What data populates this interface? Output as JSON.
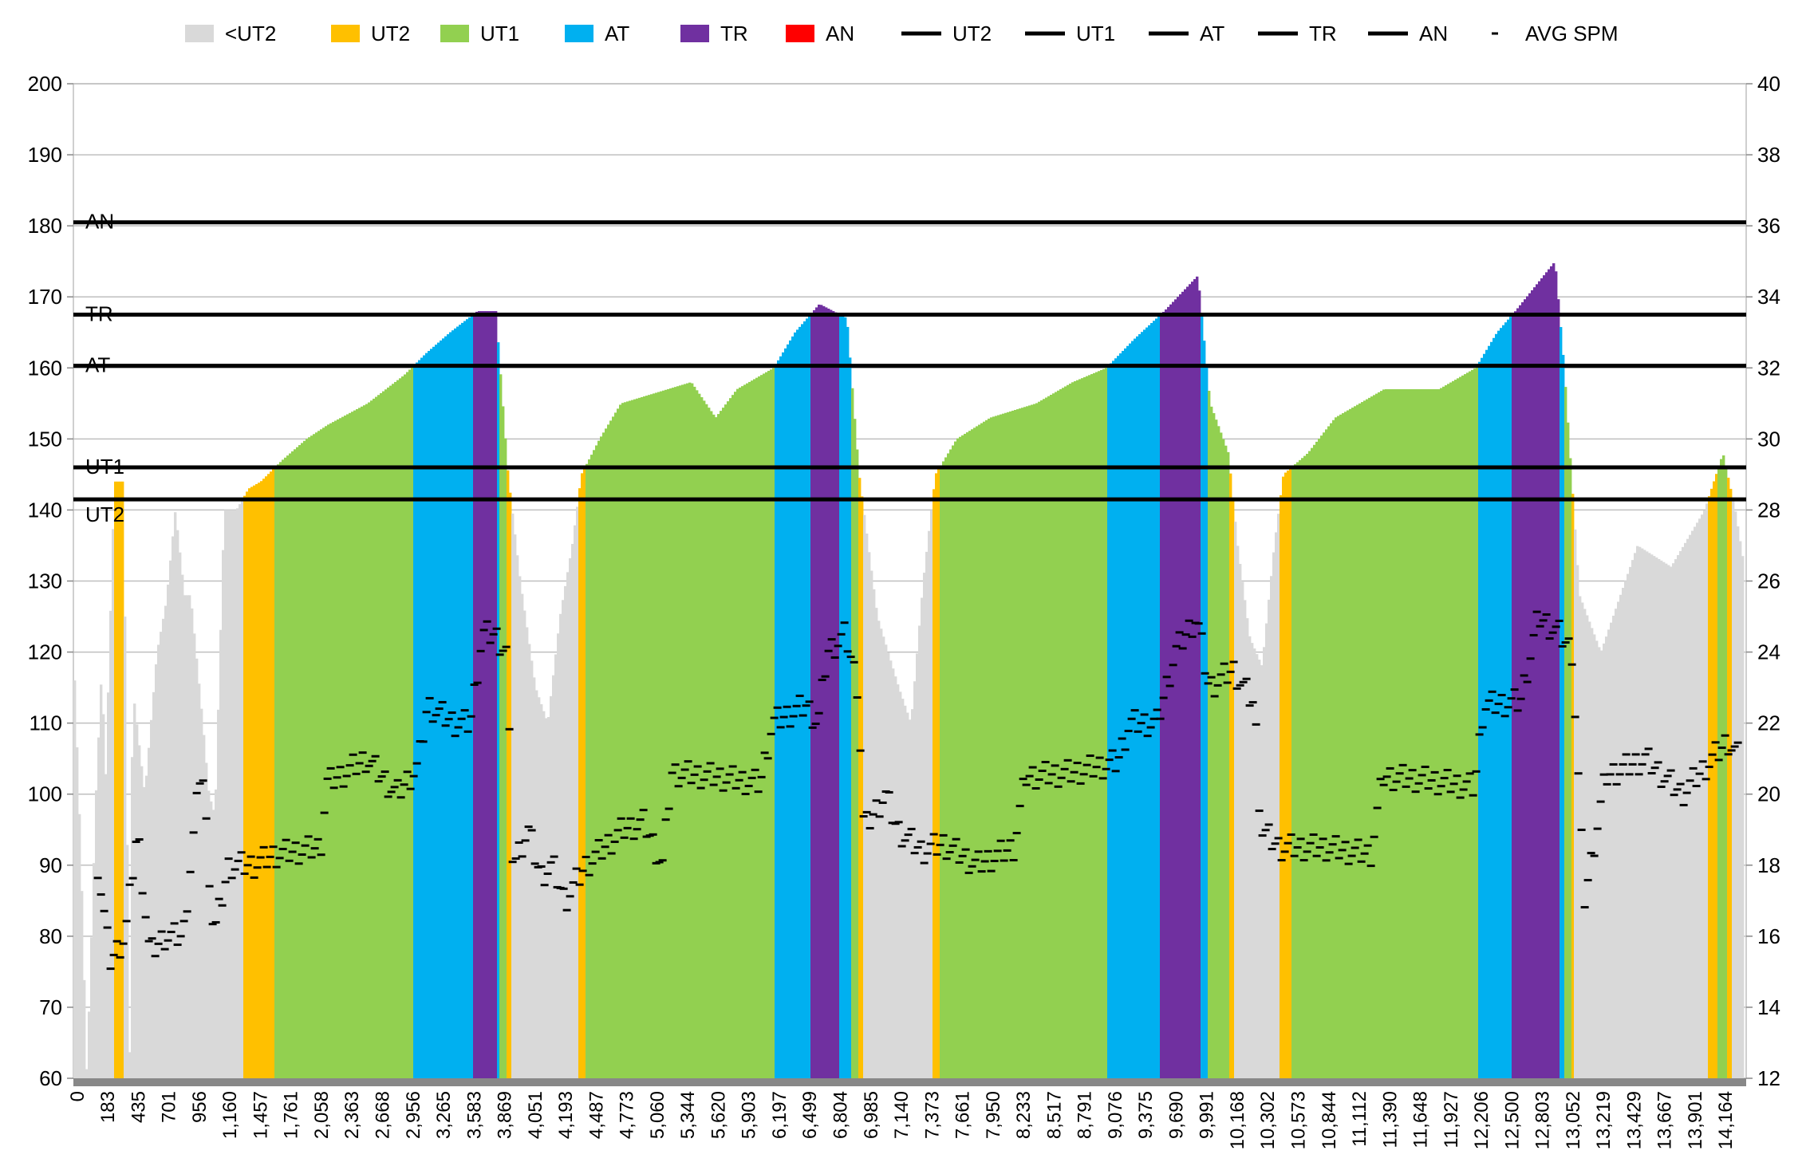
{
  "chart_data": {
    "type": "bar",
    "title": "",
    "xlabel": "",
    "ylabel": "",
    "y_left": {
      "min": 60,
      "max": 200,
      "ticks": [
        60,
        70,
        80,
        90,
        100,
        110,
        120,
        130,
        140,
        150,
        160,
        170,
        180,
        190,
        200
      ]
    },
    "y_right": {
      "min": 12,
      "max": 40,
      "ticks": [
        12,
        14,
        16,
        18,
        20,
        22,
        24,
        26,
        28,
        30,
        32,
        34,
        36,
        38,
        40
      ]
    },
    "x_labels": [
      "0",
      "183",
      "435",
      "701",
      "956",
      "1,160",
      "1,457",
      "1,761",
      "2,058",
      "2,363",
      "2,668",
      "2,956",
      "3,265",
      "3,583",
      "3,869",
      "4,051",
      "4,193",
      "4,487",
      "4,773",
      "5,060",
      "5,344",
      "5,620",
      "5,903",
      "6,197",
      "6,499",
      "6,804",
      "6,985",
      "7,140",
      "7,373",
      "7,661",
      "7,950",
      "8,233",
      "8,517",
      "8,791",
      "9,076",
      "9,375",
      "9,690",
      "9,991",
      "10,168",
      "10,302",
      "10,573",
      "10,844",
      "11,112",
      "11,390",
      "11,648",
      "11,927",
      "12,206",
      "12,500",
      "12,803",
      "13,052",
      "13,219",
      "13,429",
      "13,667",
      "13,901",
      "14,164"
    ],
    "x_range_label_index": [
      -0.1,
      54.7
    ],
    "grid": true,
    "legend_position": "top",
    "legend": [
      {
        "label": "<UT2",
        "kind": "area",
        "color": "#d9d9d9"
      },
      {
        "label": "UT2",
        "kind": "area",
        "color": "#ffc000"
      },
      {
        "label": "UT1",
        "kind": "area",
        "color": "#92d050"
      },
      {
        "label": "AT",
        "kind": "area",
        "color": "#00b0f0"
      },
      {
        "label": "TR",
        "kind": "area",
        "color": "#7030a0"
      },
      {
        "label": "AN",
        "kind": "area",
        "color": "#ff0000"
      },
      {
        "label": "UT2",
        "kind": "line",
        "color": "#000000"
      },
      {
        "label": "UT1",
        "kind": "line",
        "color": "#000000"
      },
      {
        "label": "AT",
        "kind": "line",
        "color": "#000000"
      },
      {
        "label": "TR",
        "kind": "line",
        "color": "#000000"
      },
      {
        "label": "AN",
        "kind": "line",
        "color": "#000000"
      },
      {
        "label": "AVG SPM",
        "kind": "dash",
        "color": "#000000"
      }
    ],
    "thresholds": [
      {
        "name": "UT2",
        "value": 141.5
      },
      {
        "name": "UT1",
        "value": 146
      },
      {
        "name": "AT",
        "value": 160.3
      },
      {
        "name": "TR",
        "value": 167.5
      },
      {
        "name": "AN",
        "value": 180.5
      }
    ],
    "zone_colors": {
      "below": "#d9d9d9",
      "UT2": "#ffc000",
      "UT1": "#92d050",
      "AT": "#00b0f0",
      "TR": "#7030a0",
      "AN": "#ff0000"
    },
    "heart_rate_series": [
      [
        -0.1,
        116
      ],
      [
        0.1,
        92
      ],
      [
        0.3,
        60
      ],
      [
        0.6,
        100
      ],
      [
        0.8,
        119
      ],
      [
        0.9,
        100
      ],
      [
        1.2,
        144
      ],
      [
        1.5,
        144
      ],
      [
        1.7,
        62
      ],
      [
        1.8,
        115
      ],
      [
        2.2,
        100
      ],
      [
        2.6,
        120
      ],
      [
        2.9,
        127
      ],
      [
        3.2,
        140
      ],
      [
        3.5,
        128
      ],
      [
        3.7,
        128
      ],
      [
        4.1,
        110
      ],
      [
        4.3,
        100
      ],
      [
        4.5,
        97
      ],
      [
        4.8,
        140
      ],
      [
        5.2,
        140
      ],
      [
        5.6,
        143
      ],
      [
        6.0,
        144
      ],
      [
        6.7,
        147
      ],
      [
        7.5,
        150
      ],
      [
        8.2,
        152
      ],
      [
        9.5,
        155
      ],
      [
        10.7,
        159
      ],
      [
        11.4,
        162
      ],
      [
        12.2,
        165
      ],
      [
        13.1,
        168
      ],
      [
        13.7,
        168
      ],
      [
        14.1,
        145
      ],
      [
        14.5,
        130
      ],
      [
        15.0,
        115
      ],
      [
        15.4,
        110
      ],
      [
        15.8,
        125
      ],
      [
        16.2,
        135
      ],
      [
        16.5,
        145
      ],
      [
        17.1,
        150
      ],
      [
        17.8,
        155
      ],
      [
        20.1,
        158
      ],
      [
        20.9,
        153
      ],
      [
        21.6,
        157
      ],
      [
        22.8,
        160
      ],
      [
        23.5,
        165
      ],
      [
        24.3,
        169
      ],
      [
        25.2,
        167
      ],
      [
        25.6,
        145
      ],
      [
        26.2,
        125
      ],
      [
        26.9,
        115
      ],
      [
        27.3,
        110
      ],
      [
        27.7,
        130
      ],
      [
        28.1,
        145
      ],
      [
        28.8,
        150
      ],
      [
        29.9,
        153
      ],
      [
        31.4,
        155
      ],
      [
        32.6,
        158
      ],
      [
        33.7,
        160
      ],
      [
        34.6,
        164
      ],
      [
        35.6,
        168
      ],
      [
        36.7,
        173
      ],
      [
        37.1,
        155
      ],
      [
        37.7,
        148
      ],
      [
        38.0,
        135
      ],
      [
        38.4,
        122
      ],
      [
        38.8,
        118
      ],
      [
        39.2,
        135
      ],
      [
        39.5,
        145
      ],
      [
        40.3,
        148
      ],
      [
        41.2,
        153
      ],
      [
        42.8,
        157
      ],
      [
        44.6,
        157
      ],
      [
        45.8,
        160
      ],
      [
        46.5,
        165
      ],
      [
        47.1,
        168
      ],
      [
        48.4,
        175
      ],
      [
        48.7,
        160
      ],
      [
        49.2,
        128
      ],
      [
        49.9,
        120
      ],
      [
        50.3,
        125
      ],
      [
        51.1,
        135
      ],
      [
        52.2,
        132
      ],
      [
        53.3,
        140
      ],
      [
        53.9,
        148
      ],
      [
        54.3,
        140
      ],
      [
        54.6,
        132
      ]
    ],
    "avg_spm_series": [
      [
        0.7,
        18
      ],
      [
        1.1,
        15.3
      ],
      [
        1.6,
        16
      ],
      [
        2.0,
        19
      ],
      [
        2.4,
        15.5
      ],
      [
        2.9,
        16
      ],
      [
        3.5,
        16
      ],
      [
        4.1,
        21
      ],
      [
        4.5,
        16
      ],
      [
        5.0,
        18
      ],
      [
        5.8,
        18
      ],
      [
        6.5,
        18.3
      ],
      [
        8.0,
        18.5
      ],
      [
        8.2,
        20.3
      ],
      [
        8.8,
        20.6
      ],
      [
        9.5,
        21
      ],
      [
        10.5,
        20
      ],
      [
        11.2,
        20.8
      ],
      [
        11.5,
        22.5
      ],
      [
        12.4,
        22
      ],
      [
        12.9,
        22
      ],
      [
        13.3,
        24.5
      ],
      [
        13.7,
        24.5
      ],
      [
        14.1,
        24
      ],
      [
        14.3,
        18
      ],
      [
        14.8,
        19
      ],
      [
        15.2,
        17.7
      ],
      [
        15.6,
        18
      ],
      [
        16.0,
        17
      ],
      [
        16.7,
        18
      ],
      [
        17.9,
        19
      ],
      [
        18.6,
        19.2
      ],
      [
        19.2,
        18
      ],
      [
        19.5,
        20.6
      ],
      [
        20.9,
        20.5
      ],
      [
        22.4,
        20.3
      ],
      [
        22.8,
        22
      ],
      [
        23.9,
        22.5
      ],
      [
        24.3,
        22
      ],
      [
        24.6,
        24
      ],
      [
        25.2,
        24.5
      ],
      [
        25.6,
        23
      ],
      [
        25.8,
        19
      ],
      [
        26.5,
        20
      ],
      [
        26.9,
        19
      ],
      [
        27.7,
        18.4
      ],
      [
        28.4,
        18.6
      ],
      [
        29.5,
        18
      ],
      [
        30.7,
        18.5
      ],
      [
        31.1,
        20.5
      ],
      [
        32.6,
        20.6
      ],
      [
        34.1,
        20.9
      ],
      [
        34.5,
        22
      ],
      [
        35.4,
        22
      ],
      [
        36.0,
        24
      ],
      [
        36.7,
        25
      ],
      [
        37.1,
        23
      ],
      [
        37.9,
        23.5
      ],
      [
        38.6,
        22.5
      ],
      [
        38.8,
        19
      ],
      [
        39.4,
        18.5
      ],
      [
        40.9,
        18.5
      ],
      [
        42.4,
        18.3
      ],
      [
        42.8,
        20.5
      ],
      [
        44.3,
        20.4
      ],
      [
        45.8,
        20.2
      ],
      [
        46.1,
        22.5
      ],
      [
        47.3,
        22.6
      ],
      [
        47.9,
        25
      ],
      [
        48.6,
        24.5
      ],
      [
        49.0,
        24
      ],
      [
        49.4,
        17
      ],
      [
        50.1,
        20.5
      ],
      [
        51.4,
        21
      ],
      [
        52.6,
        20
      ],
      [
        54.1,
        21.5
      ],
      [
        54.5,
        21
      ]
    ]
  }
}
